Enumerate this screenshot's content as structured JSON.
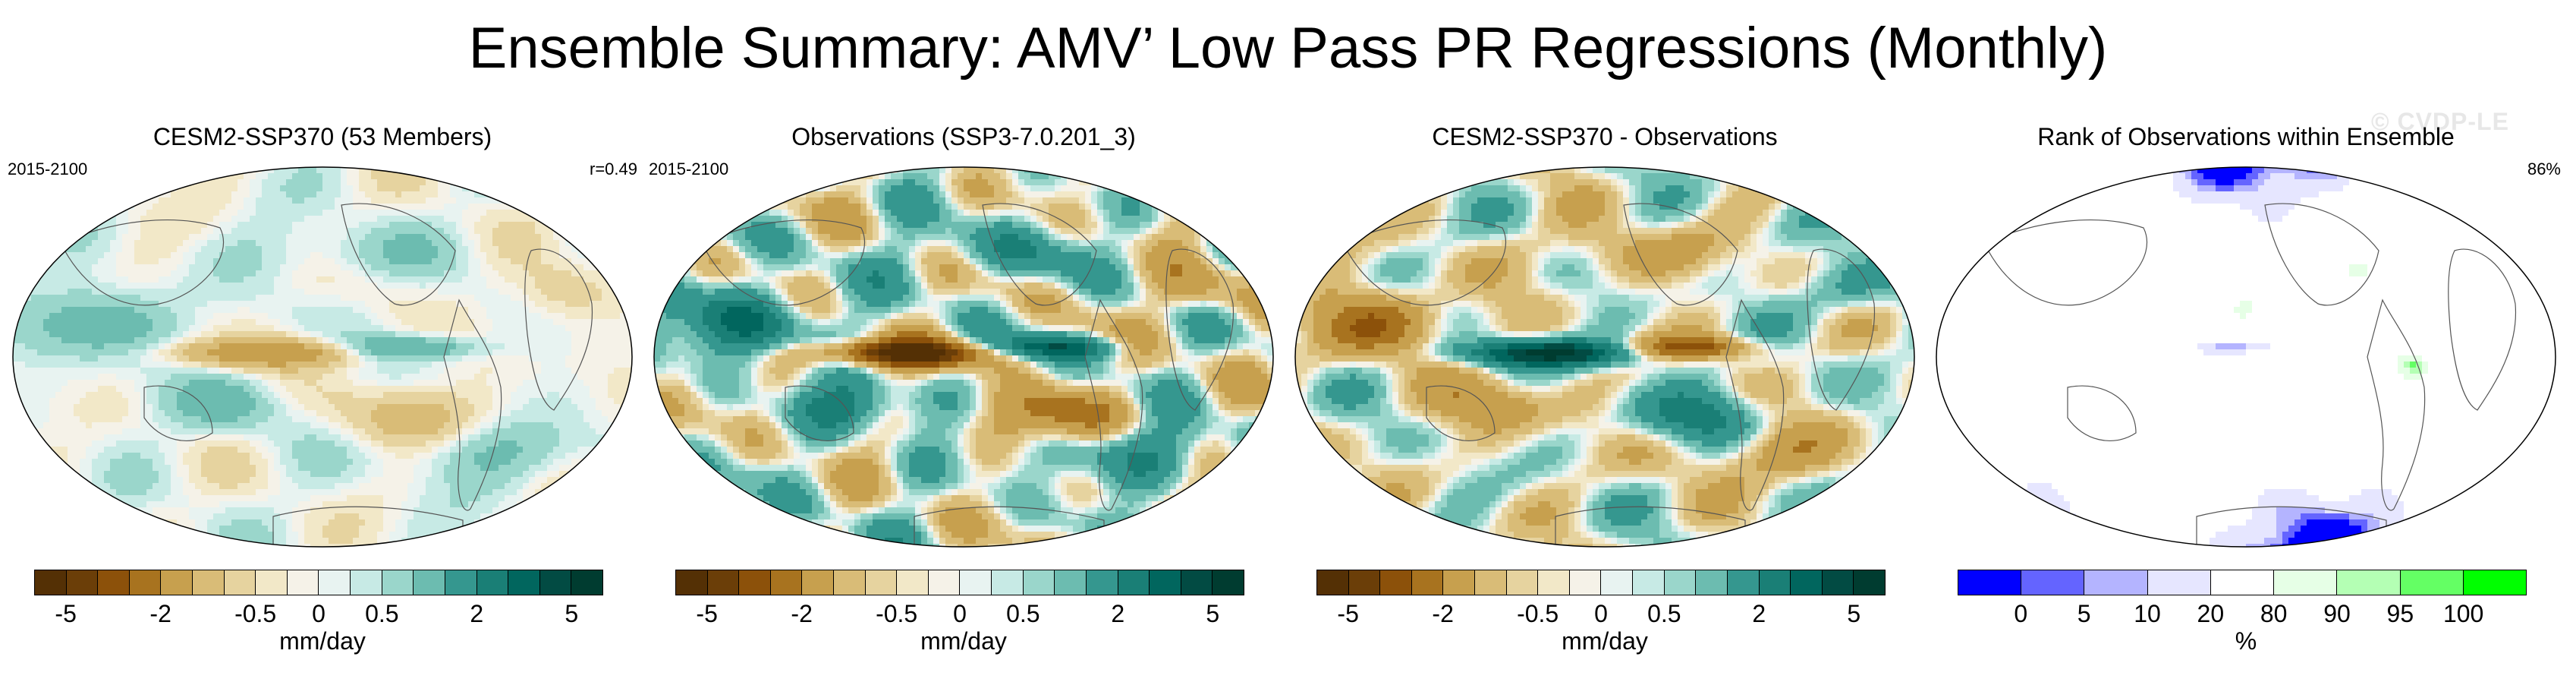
{
  "title": "Ensemble Summary: AMV’ Low Pass PR Regressions (Monthly)",
  "watermark": "© CVDP-LE",
  "panels": [
    {
      "title": "CESM2-SSP370 (53 Members)",
      "left_label": "2015-2100",
      "right_label": "r=0.49",
      "unit": "mm/day",
      "ticks": [
        "-5",
        "-2",
        "-0.5",
        "0",
        "0.5",
        "2",
        "5"
      ],
      "colors": [
        "#543005",
        "#6b3e08",
        "#8c510a",
        "#a8731f",
        "#c7a04e",
        "#d9bc77",
        "#e6d39f",
        "#f2e8c8",
        "#f5f2e8",
        "#e8f3f1",
        "#c7eae5",
        "#9ad6cb",
        "#6cbcb0",
        "#35978f",
        "#1a7f76",
        "#01665e",
        "#024b43",
        "#003c30"
      ],
      "field": "model",
      "color_scale": "diverging",
      "amplitude": 0.55
    },
    {
      "title": "Observations (SSP3-7.0.201_3)",
      "left_label": "2015-2100",
      "right_label": "",
      "unit": "mm/day",
      "ticks": [
        "-5",
        "-2",
        "-0.5",
        "0",
        "0.5",
        "2",
        "5"
      ],
      "colors": [
        "#543005",
        "#6b3e08",
        "#8c510a",
        "#a8731f",
        "#c7a04e",
        "#d9bc77",
        "#e6d39f",
        "#f2e8c8",
        "#f5f2e8",
        "#e8f3f1",
        "#c7eae5",
        "#9ad6cb",
        "#6cbcb0",
        "#35978f",
        "#1a7f76",
        "#01665e",
        "#024b43",
        "#003c30"
      ],
      "field": "obs",
      "color_scale": "diverging",
      "amplitude": 1.0
    },
    {
      "title": "CESM2-SSP370 - Observations",
      "left_label": "",
      "right_label": "",
      "unit": "mm/day",
      "ticks": [
        "-5",
        "-2",
        "-0.5",
        "0",
        "0.5",
        "2",
        "5"
      ],
      "colors": [
        "#543005",
        "#6b3e08",
        "#8c510a",
        "#a8731f",
        "#c7a04e",
        "#d9bc77",
        "#e6d39f",
        "#f2e8c8",
        "#f5f2e8",
        "#e8f3f1",
        "#c7eae5",
        "#9ad6cb",
        "#6cbcb0",
        "#35978f",
        "#1a7f76",
        "#01665e",
        "#024b43",
        "#003c30"
      ],
      "field": "diff",
      "color_scale": "diverging",
      "amplitude": 1.0
    },
    {
      "title": "Rank of Observations within Ensemble",
      "left_label": "",
      "right_label": "86%",
      "unit": "%",
      "ticks": [
        "0",
        "5",
        "10",
        "20",
        "80",
        "90",
        "95",
        "100"
      ],
      "colors": [
        "#0000ff",
        "#6464ff",
        "#b4b4ff",
        "#e6e6ff",
        "#ffffff",
        "#e6ffe6",
        "#b4ffb4",
        "#64ff64",
        "#00ff00"
      ],
      "field": "rank",
      "color_scale": "rank",
      "amplitude": 1.0
    }
  ]
}
